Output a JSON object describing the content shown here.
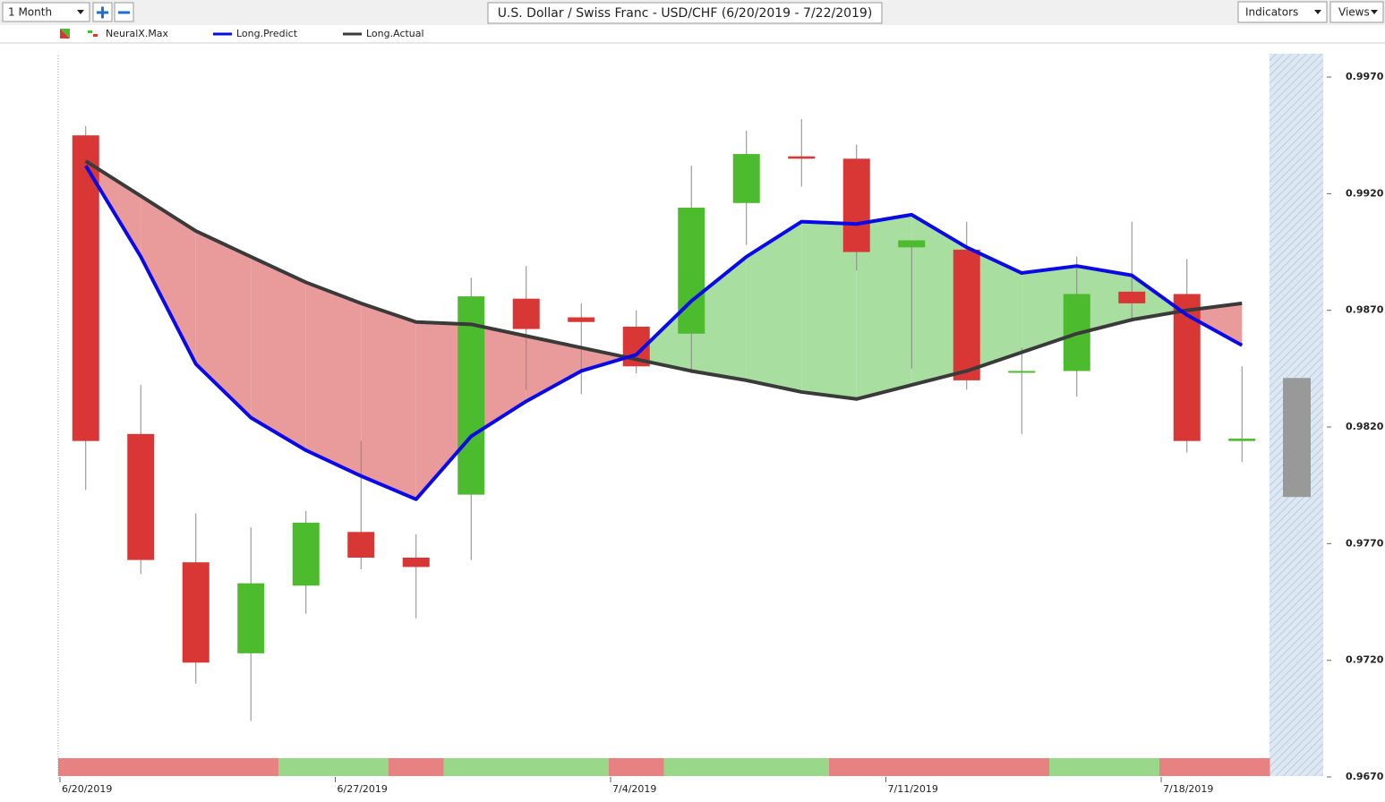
{
  "toolbar": {
    "period": "1 Month",
    "indicators": "Indicators",
    "views": "Views"
  },
  "chart_data": {
    "type": "candlestick",
    "title": "U.S. Dollar / Swiss Franc - USD/CHF (6/20/2019 - 7/22/2019)",
    "categories": [
      "6/20/2019",
      null,
      null,
      null,
      null,
      "6/27/2019",
      null,
      null,
      null,
      null,
      "7/4/2019",
      null,
      null,
      null,
      null,
      "7/11/2019",
      null,
      null,
      null,
      null,
      "7/18/2019",
      null
    ],
    "series": [
      {
        "name": "NeuralX.Max",
        "up_color": "#4cbb2e",
        "down_color": "#d93636",
        "open": [
          0.9945,
          0.9817,
          0.9762,
          0.9723,
          0.9752,
          0.9775,
          0.9764,
          0.9791,
          0.9875,
          0.9867,
          0.9863,
          0.986,
          0.9916,
          0.9936,
          0.9935,
          0.9897,
          0.9896,
          0.9844,
          0.9844,
          0.9878,
          0.9877,
          0.9814
        ],
        "high": [
          0.9949,
          0.9838,
          0.9783,
          0.9777,
          0.9784,
          0.9814,
          0.9774,
          0.9884,
          0.9889,
          0.9873,
          0.987,
          0.9932,
          0.9947,
          0.9952,
          0.9941,
          0.99,
          0.9908,
          0.9854,
          0.9893,
          0.9908,
          0.9892,
          0.9846
        ],
        "low": [
          0.9793,
          0.9757,
          0.971,
          0.9694,
          0.974,
          0.9759,
          0.9738,
          0.9763,
          0.9836,
          0.9834,
          0.9843,
          0.9843,
          0.9898,
          0.9923,
          0.9887,
          0.9845,
          0.9836,
          0.9817,
          0.9833,
          0.9865,
          0.9809,
          0.9805
        ],
        "close": [
          0.9814,
          0.9763,
          0.9719,
          0.9753,
          0.9779,
          0.9764,
          0.976,
          0.9876,
          0.9862,
          0.9865,
          0.9846,
          0.9914,
          0.9937,
          0.9935,
          0.9895,
          0.99,
          0.984,
          0.9844,
          0.9877,
          0.9873,
          0.9814,
          0.9815
        ]
      },
      {
        "name": "Long.Predict",
        "color": "#0a0ae6",
        "values": [
          0.9932,
          0.9893,
          0.9847,
          0.9824,
          0.981,
          0.9799,
          0.9789,
          0.9816,
          0.9831,
          0.9844,
          0.9851,
          0.9874,
          0.9893,
          0.9908,
          0.9907,
          0.9911,
          0.9897,
          0.9886,
          0.9889,
          0.9885,
          0.9868,
          0.9855
        ]
      },
      {
        "name": "Long.Actual",
        "color": "#3a3a3a",
        "values": [
          0.9934,
          0.9919,
          0.9904,
          0.9893,
          0.9882,
          0.9873,
          0.9865,
          0.9864,
          0.9859,
          0.9854,
          0.9849,
          0.9844,
          0.984,
          0.9835,
          0.9832,
          0.9838,
          0.9844,
          0.9852,
          0.986,
          0.9866,
          0.987,
          0.9873
        ]
      }
    ],
    "fill_above_color": "#a8dea0",
    "fill_below_color": "#e99a9a",
    "signals": [
      "#e88282",
      "#e88282",
      "#e88282",
      "#e88282",
      "#98d888",
      "#98d888",
      "#e88282",
      "#98d888",
      "#98d888",
      "#98d888",
      "#e88282",
      "#98d888",
      "#98d888",
      "#98d888",
      "#e88282",
      "#e88282",
      "#e88282",
      "#e88282",
      "#98d888",
      "#98d888",
      "#e88282",
      "#e88282"
    ],
    "forecast": {
      "low": 0.979,
      "high": 0.9841,
      "color": "#999999"
    },
    "ylim": [
      0.967,
      0.998
    ],
    "yticks": [
      {
        "value": 0.967,
        "label": "0.9670"
      },
      {
        "value": 0.972,
        "label": "0.9720"
      },
      {
        "value": 0.977,
        "label": "0.9770"
      },
      {
        "value": 0.982,
        "label": "0.9820"
      },
      {
        "value": 0.987,
        "label": "0.9870"
      },
      {
        "value": 0.992,
        "label": "0.9920"
      },
      {
        "value": 0.997,
        "label": "0.9970"
      }
    ]
  }
}
